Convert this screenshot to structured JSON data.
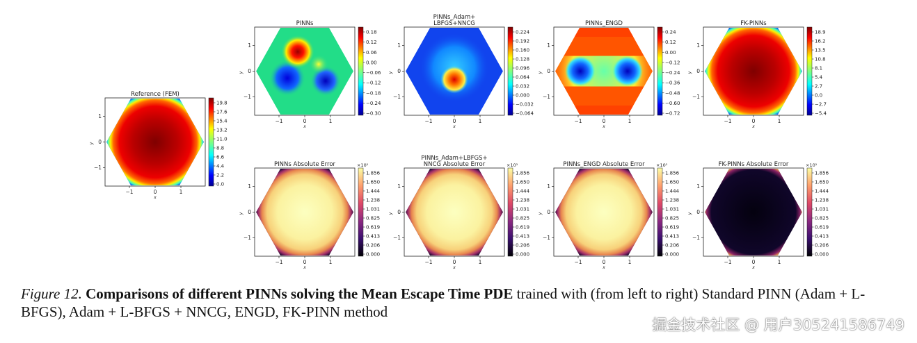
{
  "panels": [
    {
      "id": "ref",
      "title": [
        "Reference (FEM)"
      ],
      "cmap": "jet",
      "pattern": "fem",
      "ticks": [
        "19.8",
        "17.6",
        "15.4",
        "13.2",
        "11.0",
        "8.8",
        "6.6",
        "4.4",
        "2.2",
        "0.0"
      ],
      "exp": ""
    },
    {
      "id": "p1",
      "title": [
        "PINNs"
      ],
      "cmap": "jet",
      "pattern": "pinns",
      "ticks": [
        "0.18",
        "0.12",
        "0.06",
        "0.00",
        "−0.06",
        "−0.12",
        "−0.18",
        "−0.24",
        "−0.30"
      ],
      "exp": ""
    },
    {
      "id": "p2",
      "title": [
        "PINNs_Adam+",
        "LBFGS+NNCG"
      ],
      "cmap": "jet",
      "pattern": "nncg",
      "ticks": [
        "0.224",
        "0.192",
        "0.160",
        "0.128",
        "0.096",
        "0.064",
        "0.032",
        "0.000",
        "−0.032",
        "−0.064"
      ],
      "exp": ""
    },
    {
      "id": "p3",
      "title": [
        "PINNs_ENGD"
      ],
      "cmap": "jet",
      "pattern": "engd",
      "ticks": [
        "0.24",
        "0.12",
        "0.00",
        "−0.12",
        "−0.24",
        "−0.36",
        "−0.48",
        "−0.60",
        "−0.72"
      ],
      "exp": ""
    },
    {
      "id": "p4",
      "title": [
        "FK-PINNs"
      ],
      "cmap": "jet",
      "pattern": "fem",
      "ticks": [
        "18.9",
        "16.2",
        "13.5",
        "10.8",
        "8.1",
        "5.4",
        "2.7",
        "0.0",
        "−2.7",
        "−5.4"
      ],
      "exp": ""
    },
    {
      "id": "e1",
      "title": [
        "PINNs Absolute Error"
      ],
      "cmap": "inferno",
      "pattern": "err",
      "ticks": [
        "1.856",
        "1.650",
        "1.444",
        "1.238",
        "1.031",
        "0.825",
        "0.619",
        "0.413",
        "0.206",
        "0.000"
      ],
      "exp": "×10¹"
    },
    {
      "id": "e2",
      "title": [
        "PINNs_Adam+LBFGS+",
        "NNCG Absolute Error"
      ],
      "cmap": "inferno",
      "pattern": "err",
      "ticks": [
        "1.856",
        "1.650",
        "1.444",
        "1.238",
        "1.031",
        "0.825",
        "0.619",
        "0.413",
        "0.206",
        "0.000"
      ],
      "exp": "×10¹"
    },
    {
      "id": "e3",
      "title": [
        "PINNs_ENGD Absolute Error"
      ],
      "cmap": "inferno",
      "pattern": "err",
      "ticks": [
        "1.856",
        "1.650",
        "1.444",
        "1.238",
        "1.031",
        "0.825",
        "0.619",
        "0.413",
        "0.206",
        "0.000"
      ],
      "exp": "×10¹"
    },
    {
      "id": "e4",
      "title": [
        "FK-PINNs Absolute Error"
      ],
      "cmap": "inferno",
      "pattern": "fkerr",
      "ticks": [
        "1.856",
        "1.650",
        "1.444",
        "1.238",
        "1.031",
        "0.825",
        "0.619",
        "0.413",
        "0.206",
        "0.000"
      ],
      "exp": "×10¹"
    }
  ],
  "axis": {
    "xticks": [
      "−1",
      "0",
      "1"
    ],
    "yticks": [
      "1",
      "0",
      "−1"
    ],
    "xlabel": "x",
    "ylabel": "y"
  },
  "caption": {
    "lead": "Figure 12.",
    "bold": "Comparisons of different PINNs solving the Mean Escape Time PDE",
    "rest": "trained with (from left to right) Standard PINN (Adam + L-BFGS), Adam + L-BFGS + NNCG, ENGD, FK-PINN method"
  },
  "watermark": "掘金技术社区 @ 用户305241586749",
  "colors": {
    "jet_low": "#00008f",
    "jet_mid": "#7fff7f",
    "jet_high": "#7f0000",
    "inferno_low": "#000004",
    "inferno_high": "#fcffa4"
  }
}
